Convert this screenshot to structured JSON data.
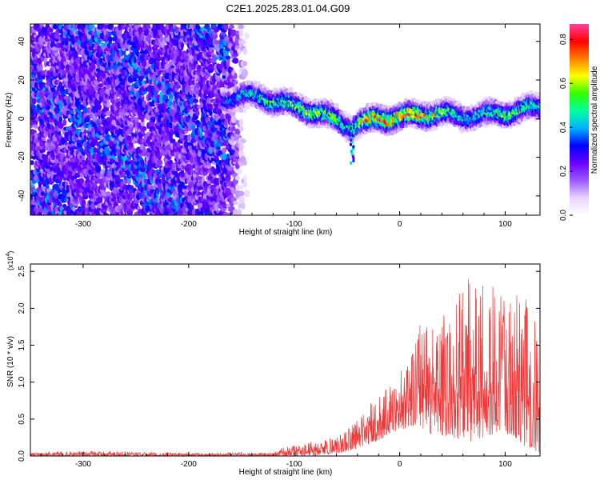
{
  "chart_data": [
    {
      "type": "heatmap",
      "title": "C2E1.2025.283.01.04.G09",
      "xlabel": "Height of straight line (km)",
      "ylabel": "Frequency (Hz)",
      "xlim": [
        -350,
        133
      ],
      "ylim": [
        -50,
        49
      ],
      "xticks": [
        -300,
        -200,
        -100,
        0,
        100
      ],
      "xtick_labels": [
        "-300",
        "-200",
        "-100",
        "0",
        "100"
      ],
      "yticks": [
        -40,
        -20,
        0,
        20,
        40
      ],
      "ytick_labels": [
        "-40",
        "-20",
        "0",
        "20",
        "40"
      ],
      "colorbar": {
        "label": "Normalized spectral amplitude",
        "range": [
          0,
          0.87
        ],
        "ticks": [
          0.0,
          0.2,
          0.4,
          0.6,
          0.8
        ],
        "tick_labels": [
          "0.0",
          "0.2",
          "0.4",
          "0.6",
          "0.8"
        ],
        "colors": [
          "#ffffff",
          "#e8d4ff",
          "#9b59ff",
          "#6a00ff",
          "#0000ff",
          "#00b0ff",
          "#00ffa0",
          "#30ff00",
          "#ffff00",
          "#ff8000",
          "#ff0000",
          "#ff40a0"
        ]
      },
      "broadband_noise_region": [
        -350,
        -165
      ],
      "ridge": {
        "x": [
          -165,
          -150,
          -130,
          -110,
          -90,
          -70,
          -55,
          -45,
          -35,
          -20,
          0,
          20,
          40,
          60,
          80,
          100,
          133
        ],
        "center": [
          10,
          12,
          11,
          8,
          5,
          2,
          -2,
          -4,
          -2,
          0,
          1,
          2,
          3,
          1,
          2,
          3,
          6
        ],
        "peak": [
          0.35,
          0.45,
          0.5,
          0.55,
          0.62,
          0.6,
          0.55,
          0.5,
          0.65,
          0.8,
          0.75,
          0.7,
          0.6,
          0.45,
          0.5,
          0.55,
          0.5
        ]
      },
      "spike": {
        "x": -45,
        "min_freq": -23
      }
    },
    {
      "type": "line",
      "xlabel": "Height of straight line (km)",
      "ylabel": "SNR (10 * v/v)",
      "scale_label": "(x10",
      "scale_exponent": "4",
      "xlim": [
        -350,
        133
      ],
      "ylim": [
        0,
        2.6
      ],
      "xticks": [
        -300,
        -200,
        -100,
        0,
        100
      ],
      "xtick_labels": [
        "-300",
        "-200",
        "-100",
        "0",
        "100"
      ],
      "yticks": [
        0.0,
        0.5,
        1.0,
        1.5,
        2.0,
        2.5
      ],
      "ytick_labels": [
        "0.0",
        "0.5",
        "1.0",
        "1.5",
        "2.0",
        "2.5"
      ],
      "line_color": "#ef3535",
      "envelope": {
        "x": [
          -350,
          -300,
          -200,
          -150,
          -120,
          -110,
          -90,
          -70,
          -50,
          -40,
          -30,
          -20,
          -10,
          0,
          10,
          20,
          30,
          40,
          50,
          60,
          70,
          80,
          90,
          100,
          110,
          120,
          133
        ],
        "low": [
          0.0,
          0.0,
          0.0,
          0.0,
          0.0,
          0.0,
          0.0,
          0.02,
          0.05,
          0.1,
          0.15,
          0.2,
          0.3,
          0.35,
          0.4,
          0.35,
          0.3,
          0.25,
          0.25,
          0.2,
          0.2,
          0.25,
          0.3,
          0.3,
          0.25,
          0.1,
          0.05
        ],
        "high": [
          0.05,
          0.07,
          0.04,
          0.05,
          0.05,
          0.12,
          0.18,
          0.22,
          0.35,
          0.5,
          0.7,
          0.8,
          1.0,
          1.15,
          1.3,
          1.9,
          1.8,
          2.0,
          2.2,
          2.4,
          2.5,
          2.4,
          2.3,
          2.1,
          2.3,
          2.2,
          1.6
        ]
      }
    }
  ]
}
